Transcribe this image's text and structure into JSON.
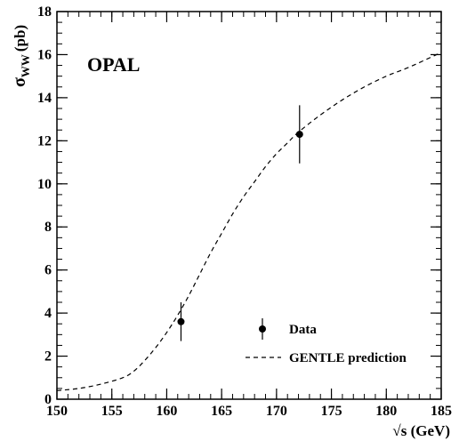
{
  "chart_data": {
    "type": "scatter",
    "experiment_label": "OPAL",
    "xlabel": "√s (GeV)",
    "ylabel": "σ",
    "ylabel_sub": "WW",
    "ylabel_unit": "(pb)",
    "xlim": [
      150,
      185
    ],
    "ylim": [
      0,
      18
    ],
    "x_major_ticks": [
      150,
      155,
      160,
      165,
      170,
      175,
      180,
      185
    ],
    "y_major_ticks": [
      0,
      2,
      4,
      6,
      8,
      10,
      12,
      14,
      16,
      18
    ],
    "x_minor_step": 1,
    "y_minor_step": 0.5,
    "grid": false,
    "legend_position": "bottom-right",
    "series": [
      {
        "name": "Data",
        "kind": "points_with_errors",
        "points": [
          {
            "x": 161.3,
            "y": 3.6,
            "err": 0.9
          },
          {
            "x": 172.1,
            "y": 12.3,
            "err": 1.35
          }
        ]
      },
      {
        "name": "GENTLE prediction",
        "kind": "dashed_line",
        "x": [
          150,
          152,
          154,
          156,
          157,
          158,
          159,
          160,
          161,
          162,
          163,
          164,
          165,
          166,
          167,
          168,
          169,
          170,
          171,
          172,
          174,
          176,
          178,
          180,
          182,
          185
        ],
        "y": [
          0.4,
          0.5,
          0.7,
          1.0,
          1.3,
          1.8,
          2.4,
          3.1,
          3.9,
          4.8,
          5.8,
          6.8,
          7.7,
          8.6,
          9.4,
          10.1,
          10.8,
          11.4,
          11.9,
          12.4,
          13.2,
          13.9,
          14.5,
          15.0,
          15.4,
          16.1
        ]
      }
    ]
  }
}
